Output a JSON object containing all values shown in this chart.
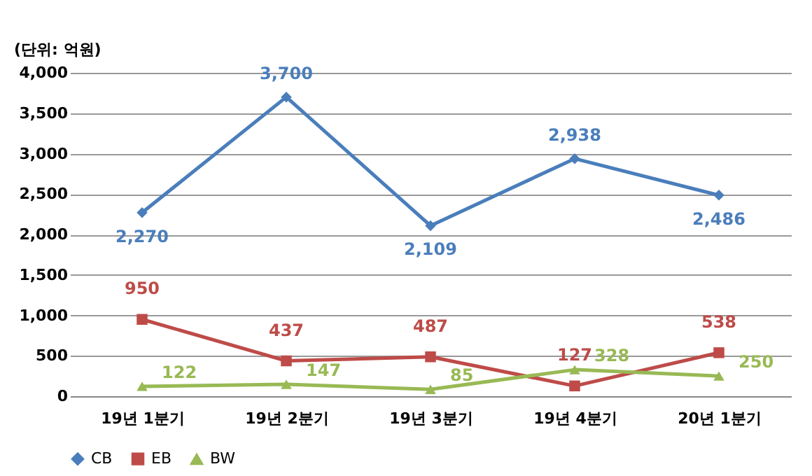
{
  "chart_data": {
    "type": "line",
    "annotations": [
      "(단위: 억원)"
    ],
    "categories": [
      "19년 1분기",
      "19년 2분기",
      "19년 3분기",
      "19년 4분기",
      "20년 1분기"
    ],
    "series": [
      {
        "name": "CB",
        "color": "#4a7ebb",
        "marker": "diamond",
        "values": [
          2270,
          3700,
          2109,
          2938,
          2486
        ],
        "value_labels": [
          "2,270",
          "3,700",
          "2,109",
          "2,938",
          "2,486"
        ]
      },
      {
        "name": "EB",
        "color": "#be4b48",
        "marker": "square",
        "values": [
          950,
          437,
          487,
          127,
          538
        ],
        "value_labels": [
          "950",
          "437",
          "487",
          "127",
          "538"
        ]
      },
      {
        "name": "BW",
        "color": "#98b954",
        "marker": "triangle",
        "values": [
          122,
          147,
          85,
          328,
          250
        ],
        "value_labels": [
          "122",
          "147",
          "85",
          "328",
          "250"
        ]
      }
    ],
    "ylim": [
      0,
      4000
    ],
    "yticks": [
      0,
      500,
      {
        "value": 1000,
        "label": "1,000"
      },
      {
        "value": 1500,
        "label": "1,500"
      },
      {
        "value": 2000,
        "label": "2,000"
      },
      {
        "value": 2500,
        "label": "2,500"
      },
      {
        "value": 3000,
        "label": "3,000"
      },
      {
        "value": 3500,
        "label": "3,500"
      },
      {
        "value": 4000,
        "label": "4,000"
      }
    ],
    "grid": "y",
    "legend": "bottom",
    "line_style": "solid",
    "data_labels": true
  }
}
